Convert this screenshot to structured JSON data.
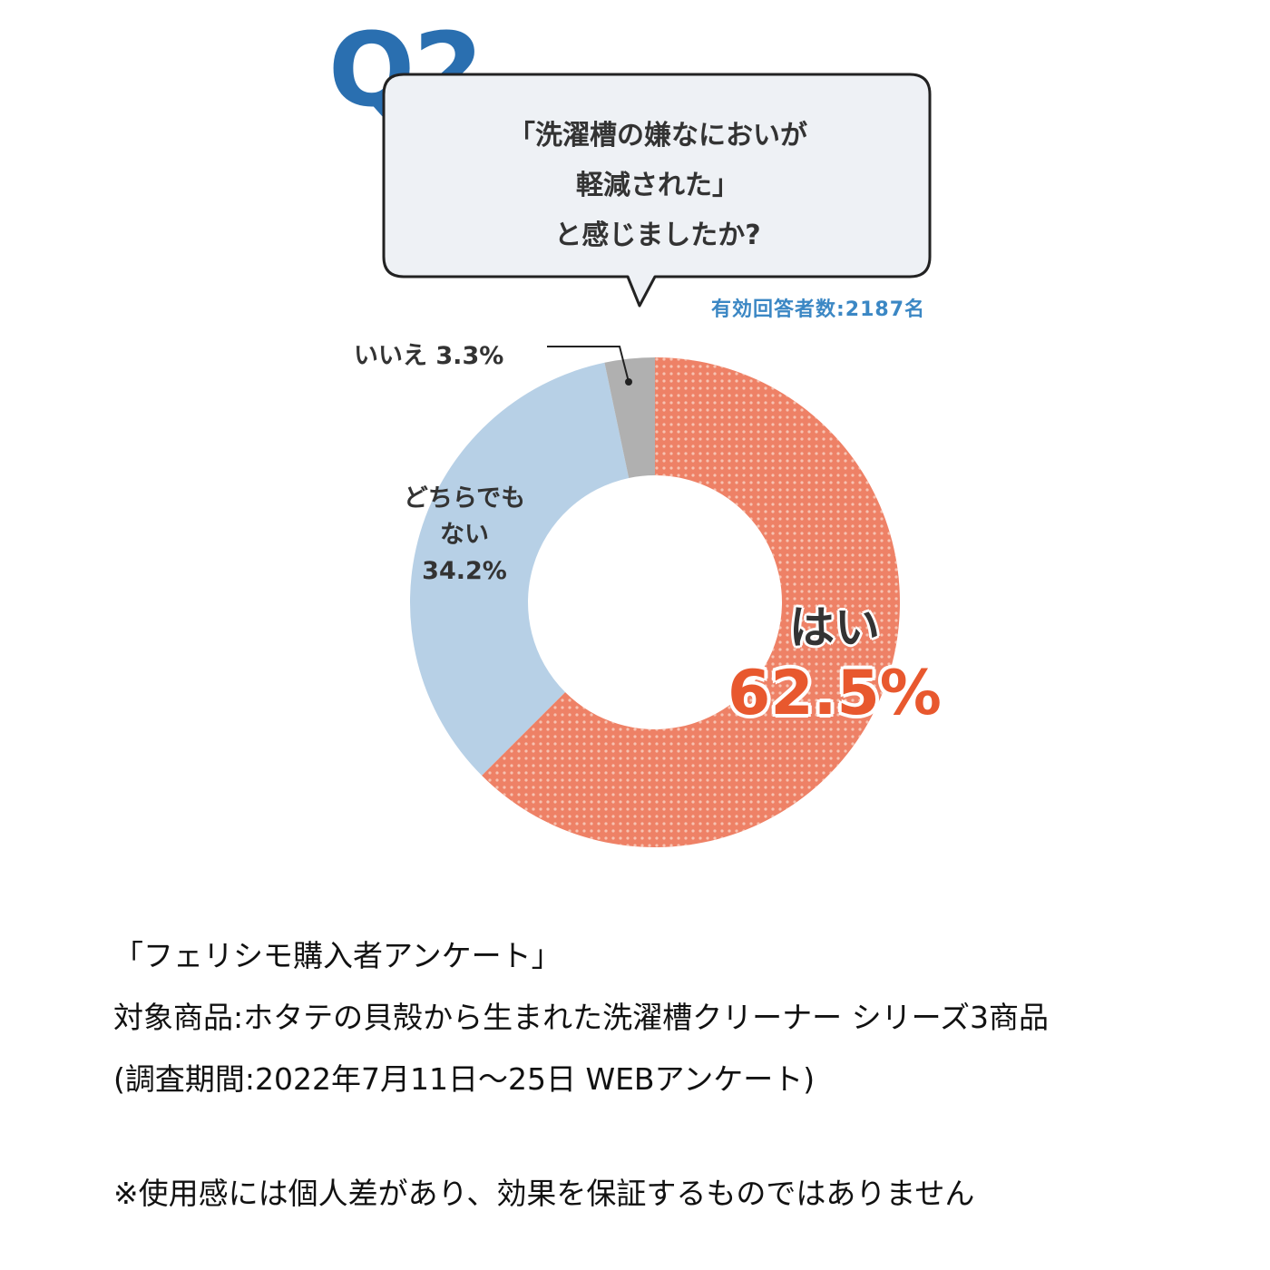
{
  "q_label": "Q2",
  "question": {
    "lines": [
      "「洗濯槽の嫌なにおいが",
      "軽減された」",
      "と感じましたか?"
    ]
  },
  "respondents": "有効回答者数:2187名",
  "colors": {
    "yes": "#ee8166",
    "neither": "#b7d0e6",
    "no": "#b0b0b0",
    "accent_blue": "#2a6fb0",
    "yes_text": "#e8582e"
  },
  "chart_data": {
    "type": "pie",
    "donut": true,
    "start": "top",
    "direction": "clockwise",
    "slices": [
      {
        "label": "はい",
        "value": 62.5,
        "display": "62.5%",
        "color": "#ee8166"
      },
      {
        "label": "どちらでもない",
        "value": 34.2,
        "display": "34.2%",
        "color": "#b7d0e6"
      },
      {
        "label": "いいえ",
        "value": 3.3,
        "display": "3.3%",
        "color": "#b0b0b0"
      }
    ]
  },
  "labels": {
    "no": "いいえ 3.3%",
    "neither_line1": "どちらでも",
    "neither_line2": "ない",
    "neither_pct": "34.2%",
    "yes_name": "はい",
    "yes_pct": "62.5%"
  },
  "footer": {
    "line1": "「フェリシモ購入者アンケート」",
    "line2": "対象商品:ホタテの貝殻から生まれた洗濯槽クリーナー シリーズ3商品",
    "line3": "(調査期間:2022年7月11日〜25日 WEBアンケート)",
    "note": "※使用感には個人差があり、効果を保証するものではありません"
  }
}
